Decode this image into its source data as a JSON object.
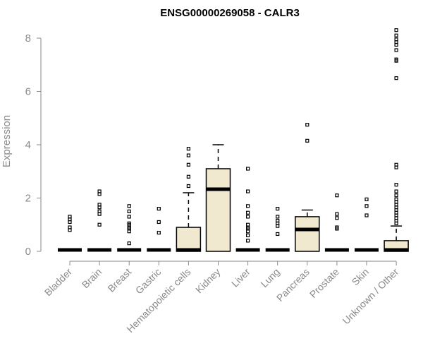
{
  "chart_data": {
    "type": "boxplot",
    "title": "ENSG00000269058 - CALR3",
    "xlabel": "",
    "ylabel": "Expression",
    "ylim": [
      0,
      8.2
    ],
    "yticks": [
      0,
      2,
      4,
      6,
      8
    ],
    "grid": false,
    "box_color": "#f0e9cf",
    "categories": [
      "Bladder",
      "Brain",
      "Breast",
      "Gastric",
      "Hematopoietic cells",
      "Kidney",
      "Liver",
      "Lung",
      "Pancreas",
      "Prostate",
      "Skin",
      "Unknown / Other"
    ],
    "boxes": [
      {
        "q1": 0,
        "median": 0,
        "q3": 0,
        "whisker_low": 0,
        "whisker_high": 0,
        "outliers": [
          0.8,
          0.9,
          1.1,
          1.2,
          1.3
        ]
      },
      {
        "q1": 0,
        "median": 0,
        "q3": 0,
        "whisker_low": 0,
        "whisker_high": 0,
        "outliers": [
          1.0,
          1.4,
          1.5,
          1.65,
          1.75,
          2.15,
          2.25
        ]
      },
      {
        "q1": 0,
        "median": 0,
        "q3": 0,
        "whisker_low": 0,
        "whisker_high": 0,
        "outliers": [
          0.3,
          0.75,
          0.85,
          0.9,
          1.0,
          1.05,
          1.3,
          1.5,
          1.7
        ]
      },
      {
        "q1": 0,
        "median": 0,
        "q3": 0,
        "whisker_low": 0,
        "whisker_high": 0,
        "outliers": [
          0.7,
          1.1,
          1.6
        ]
      },
      {
        "q1": 0,
        "median": 0,
        "q3": 0.9,
        "whisker_low": 0,
        "whisker_high": 2.2,
        "outliers": [
          2.45,
          2.8,
          3.25,
          3.6,
          3.85
        ]
      },
      {
        "q1": 0,
        "median": 2.33,
        "q3": 3.1,
        "whisker_low": 0,
        "whisker_high": 4.0,
        "outliers": []
      },
      {
        "q1": 0,
        "median": 0,
        "q3": 0,
        "whisker_low": 0,
        "whisker_high": 0,
        "outliers": [
          0.4,
          0.6,
          0.75,
          0.85,
          0.9,
          1.0,
          1.3,
          1.45,
          1.7,
          2.25,
          3.1
        ]
      },
      {
        "q1": 0,
        "median": 0,
        "q3": 0,
        "whisker_low": 0,
        "whisker_high": 0,
        "outliers": [
          0.65,
          0.95,
          1.05,
          1.15,
          1.3,
          1.6
        ]
      },
      {
        "q1": 0,
        "median": 0.82,
        "q3": 1.3,
        "whisker_low": 0,
        "whisker_high": 1.55,
        "outliers": [
          4.15,
          4.75
        ]
      },
      {
        "q1": 0,
        "median": 0,
        "q3": 0,
        "whisker_low": 0,
        "whisker_high": 0,
        "outliers": [
          0.85,
          0.9,
          1.25,
          1.4,
          2.1
        ]
      },
      {
        "q1": 0,
        "median": 0,
        "q3": 0,
        "whisker_low": 0,
        "whisker_high": 0,
        "outliers": [
          1.35,
          1.7,
          1.95
        ]
      },
      {
        "q1": 0,
        "median": 0.03,
        "q3": 0.4,
        "whisker_low": 0,
        "whisker_high": 0.95,
        "outliers": [
          1.05,
          1.15,
          1.25,
          1.35,
          1.45,
          1.55,
          1.65,
          1.75,
          1.85,
          1.95,
          2.1,
          2.25,
          2.5,
          3.15,
          3.25,
          6.5,
          7.15,
          7.2,
          7.55,
          7.75,
          7.85,
          7.95,
          8.1,
          8.3
        ]
      }
    ]
  }
}
